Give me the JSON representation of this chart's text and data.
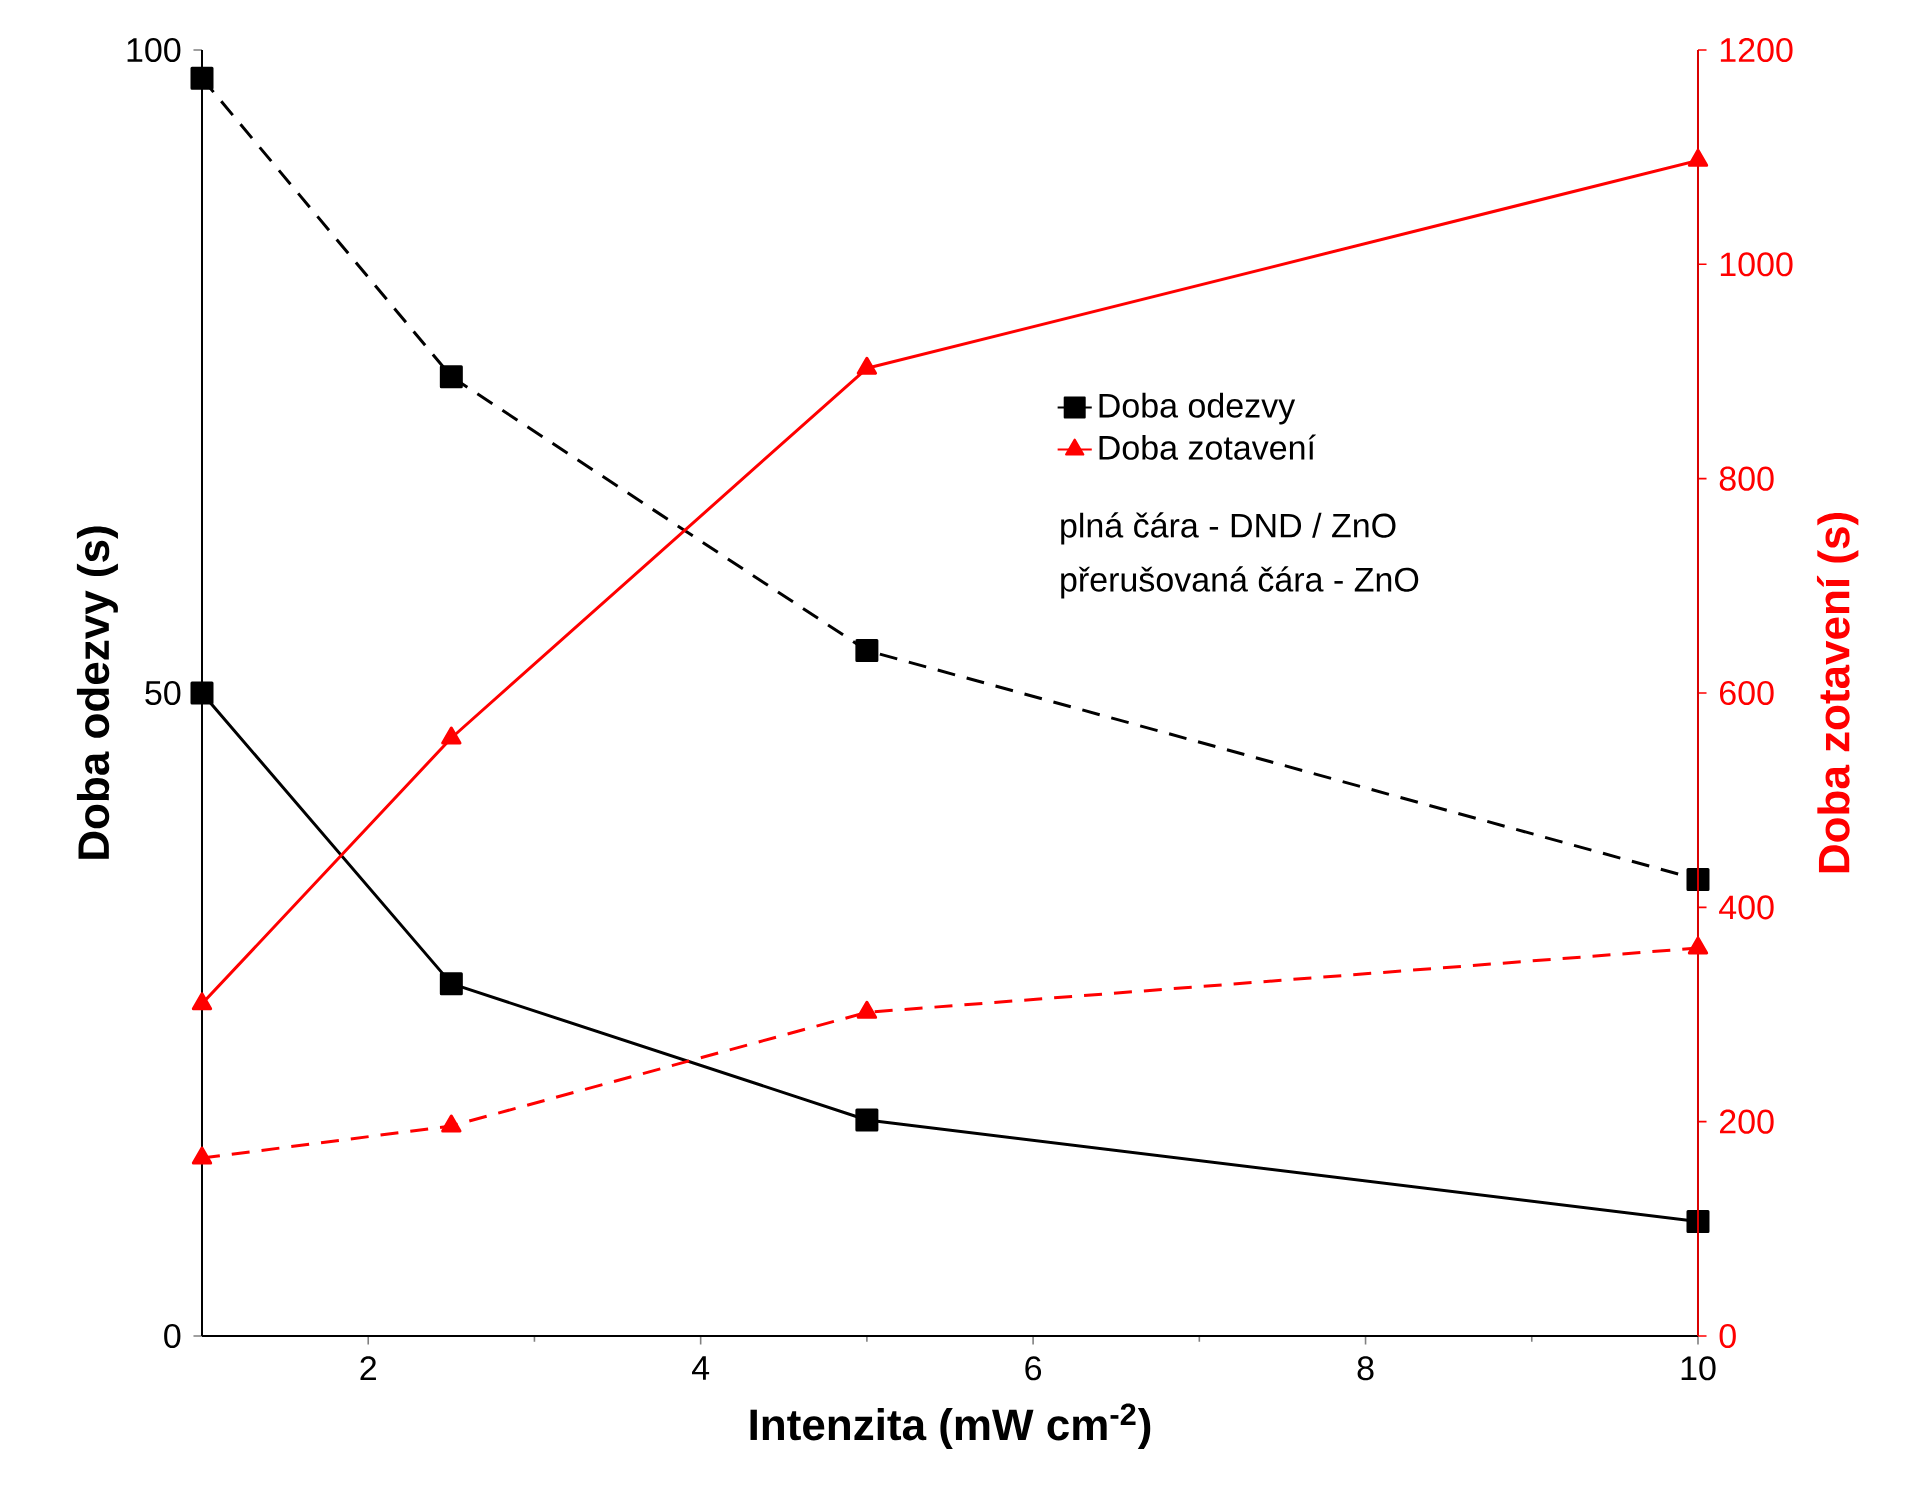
{
  "chart_data": {
    "type": "line",
    "xlabel": "Intenzita (mW cm$^{-2}$)",
    "ylabel": "Doba odezvy (s)",
    "y2label": "Doba zotavení (s)",
    "x": [
      1,
      2.5,
      5,
      10
    ],
    "series": [
      {
        "name": "Doba odezvy",
        "color": "#000000",
        "marker": "square",
        "line_style": "solid",
        "axis": "y",
        "values": [
          50,
          27.4,
          16.8,
          8.9
        ]
      },
      {
        "color": "#000000",
        "marker": "square",
        "line_style": "dashed",
        "axis": "y",
        "values": [
          97.8,
          74.6,
          53.3,
          35.5
        ]
      },
      {
        "name": "Doba zotavení",
        "color": "#ff0000",
        "marker": "triangle",
        "line_style": "solid",
        "axis": "y2",
        "values": [
          310,
          558,
          903,
          1097
        ]
      },
      {
        "color": "#ff0000",
        "marker": "triangle",
        "line_style": "dashed",
        "axis": "y2",
        "values": [
          166,
          196,
          302,
          362
        ]
      }
    ],
    "xlim": [
      1,
      10
    ],
    "xticks": [
      2,
      4,
      6,
      8,
      10
    ],
    "ylim": [
      0,
      100
    ],
    "yticks": [
      0,
      50,
      100
    ],
    "y2lim": [
      0,
      1200
    ],
    "y2ticks": [
      0,
      200,
      400,
      600,
      800,
      1000,
      1200
    ],
    "legend": "right",
    "annotations": [
      "plná čára - DND / ZnO",
      "přerušovaná čára - ZnO"
    ]
  }
}
